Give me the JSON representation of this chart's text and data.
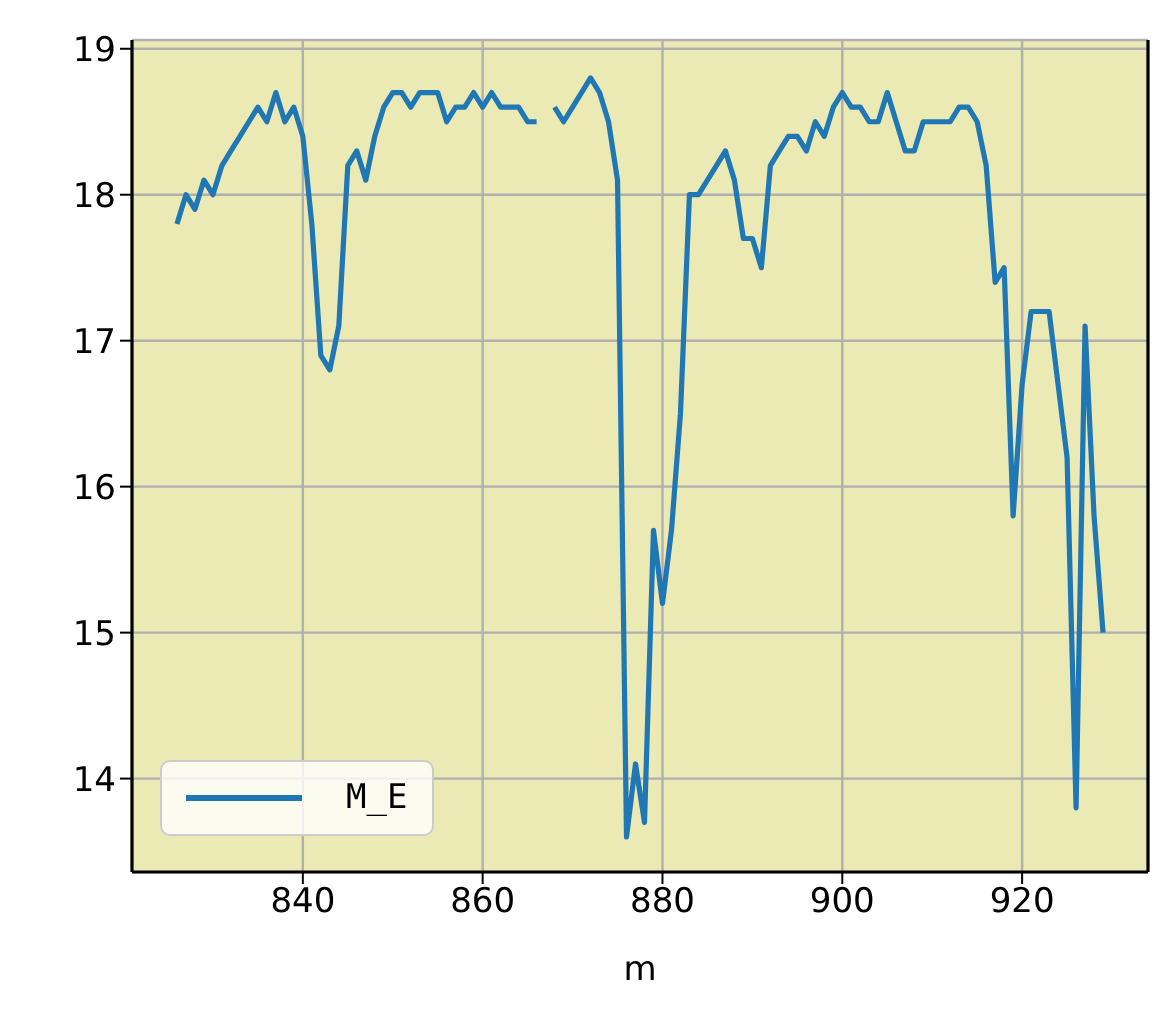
{
  "chart_data": {
    "type": "line",
    "xlabel": "m",
    "x": [
      826,
      827,
      828,
      829,
      830,
      831,
      832,
      833,
      834,
      835,
      836,
      837,
      838,
      839,
      840,
      841,
      842,
      843,
      844,
      845,
      846,
      847,
      848,
      849,
      850,
      851,
      852,
      853,
      854,
      855,
      856,
      857,
      858,
      859,
      860,
      861,
      862,
      863,
      864,
      865,
      866,
      867,
      868,
      869,
      870,
      871,
      872,
      873,
      874,
      875,
      876,
      877,
      878,
      879,
      880,
      881,
      882,
      883,
      884,
      885,
      886,
      887,
      888,
      889,
      890,
      891,
      892,
      893,
      894,
      895,
      896,
      897,
      898,
      899,
      900,
      901,
      902,
      903,
      904,
      905,
      906,
      907,
      908,
      909,
      910,
      911,
      912,
      913,
      914,
      915,
      916,
      917,
      918,
      919,
      920,
      921,
      922,
      923,
      924,
      925,
      926,
      927,
      928,
      929
    ],
    "series": [
      {
        "name": "M_E",
        "color": "#1f77b4",
        "values": [
          17.8,
          18.0,
          17.9,
          18.1,
          18.0,
          18.2,
          18.3,
          18.4,
          18.5,
          18.6,
          18.5,
          18.7,
          18.5,
          18.6,
          18.4,
          17.8,
          16.9,
          16.8,
          17.1,
          18.2,
          18.3,
          18.1,
          18.4,
          18.6,
          18.7,
          18.7,
          18.6,
          18.7,
          18.7,
          18.7,
          18.5,
          18.6,
          18.6,
          18.7,
          18.6,
          18.7,
          18.6,
          18.6,
          18.6,
          18.5,
          18.5,
          null,
          18.6,
          18.5,
          18.6,
          18.7,
          18.8,
          18.7,
          18.5,
          18.1,
          13.6,
          14.1,
          13.7,
          15.7,
          15.2,
          15.7,
          16.5,
          18.0,
          18.0,
          18.1,
          18.2,
          18.3,
          18.1,
          17.7,
          17.7,
          17.5,
          18.2,
          18.3,
          18.4,
          18.4,
          18.3,
          18.5,
          18.4,
          18.6,
          18.7,
          18.6,
          18.6,
          18.5,
          18.5,
          18.7,
          18.5,
          18.3,
          18.3,
          18.5,
          18.5,
          18.5,
          18.5,
          18.6,
          18.6,
          18.5,
          18.2,
          17.4,
          17.5,
          15.8,
          16.7,
          17.2,
          17.2,
          17.2,
          16.7,
          16.2,
          13.8,
          17.1,
          15.8,
          15.0
        ]
      }
    ],
    "xlim": [
      821,
      934
    ],
    "xticks": [
      840,
      860,
      880,
      900,
      920
    ],
    "ylim": [
      13.36,
      19.06
    ],
    "yticks": [
      14,
      15,
      16,
      17,
      18,
      19
    ],
    "grid": true,
    "legend": "bottom left",
    "line_style": "solid",
    "marker": "none"
  }
}
